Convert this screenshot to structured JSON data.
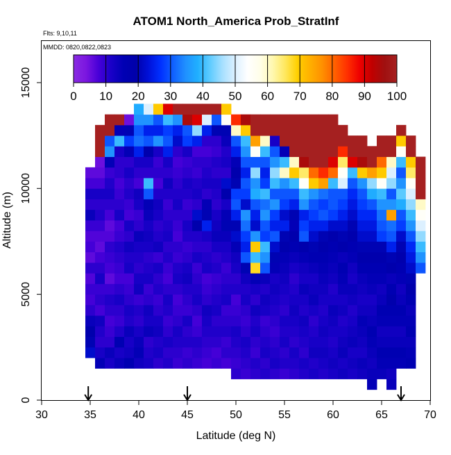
{
  "chart_data": {
    "type": "heatmap",
    "title": "ATOM1 North_America Prob_StratInf",
    "annotations": {
      "flights": "Flts: 9,10,11",
      "dates": "MMDD: 0820,0822,0823"
    },
    "xlabel": "Latitude (deg N)",
    "ylabel": "Altitude (m)",
    "xlim": [
      30,
      70
    ],
    "ylim": [
      0,
      17000
    ],
    "x_ticks": [
      30,
      35,
      40,
      45,
      50,
      55,
      60,
      65,
      70
    ],
    "y_ticks": [
      0,
      5000,
      10000,
      15000
    ],
    "colorbar": {
      "range": [
        0,
        100
      ],
      "ticks": [
        0,
        10,
        20,
        30,
        40,
        50,
        60,
        70,
        80,
        90,
        100
      ],
      "colors": [
        "#8a2be2",
        "#7b16e0",
        "#4800d8",
        "#1a00c8",
        "#0000b4",
        "#0000aa",
        "#0010d8",
        "#0030ff",
        "#1060ff",
        "#2090ff",
        "#20b0ff",
        "#60ccff",
        "#a8e0ff",
        "#dcf0ff",
        "#ffffff",
        "#fffee8",
        "#fff8b0",
        "#ffe860",
        "#ffd000",
        "#ffb000",
        "#ff9000",
        "#ff6000",
        "#ff3000",
        "#ee0000",
        "#c00000",
        "#a01010",
        "#a52020"
      ]
    },
    "flight_markers_lat": [
      34.8,
      45,
      67
    ],
    "cell_size": {
      "lat": 1.0,
      "alt": 500
    },
    "columns": [
      {
        "lat": 35,
        "bottom": 2000,
        "values": [
          22,
          20,
          18,
          14,
          10,
          8,
          9,
          7,
          10,
          6,
          8,
          7,
          9,
          14,
          10,
          12,
          8,
          6
        ]
      },
      {
        "lat": 36,
        "bottom": 1500,
        "values": [
          15,
          12,
          10,
          11,
          13,
          8,
          10,
          9,
          12,
          10,
          8,
          6,
          7,
          9,
          11,
          10,
          12,
          8,
          6,
          5,
          100,
          100,
          100
        ]
      },
      {
        "lat": 37,
        "bottom": 1500,
        "values": [
          12,
          14,
          10,
          9,
          8,
          10,
          11,
          9,
          6,
          8,
          9,
          10,
          7,
          6,
          8,
          10,
          12,
          11,
          9,
          15,
          35,
          30,
          100,
          100
        ]
      },
      {
        "lat": 38,
        "bottom": 1500,
        "values": [
          14,
          12,
          16,
          11,
          9,
          10,
          12,
          10,
          8,
          9,
          10,
          11,
          9,
          8,
          12,
          10,
          9,
          8,
          10,
          10,
          12,
          40,
          15,
          100
        ]
      },
      {
        "lat": 39,
        "bottom": 1500,
        "values": [
          16,
          13,
          12,
          14,
          11,
          12,
          10,
          9,
          8,
          12,
          11,
          13,
          10,
          12,
          8,
          9,
          11,
          10,
          12,
          10,
          15,
          28,
          20,
          5
        ]
      },
      {
        "lat": 40,
        "bottom": 1500,
        "values": [
          13,
          15,
          14,
          12,
          10,
          11,
          9,
          13,
          12,
          10,
          11,
          12,
          14,
          10,
          9,
          12,
          13,
          8,
          10,
          12,
          25,
          32,
          30,
          35,
          38
        ]
      },
      {
        "lat": 41,
        "bottom": 1500,
        "values": [
          12,
          11,
          10,
          14,
          12,
          13,
          10,
          9,
          12,
          11,
          10,
          12,
          13,
          12,
          14,
          15,
          30,
          40,
          10,
          12,
          18,
          30,
          25,
          35,
          50
        ]
      },
      {
        "lat": 42,
        "bottom": 1500,
        "values": [
          10,
          12,
          11,
          13,
          12,
          10,
          9,
          11,
          10,
          12,
          9,
          13,
          11,
          10,
          12,
          13,
          11,
          8,
          10,
          9,
          12,
          35,
          25,
          30,
          70
        ]
      },
      {
        "lat": 43,
        "bottom": 1500,
        "values": [
          11,
          10,
          12,
          10,
          9,
          11,
          12,
          10,
          8,
          9,
          11,
          10,
          12,
          11,
          10,
          9,
          11,
          13,
          10,
          12,
          25,
          30,
          28,
          40,
          90
        ]
      },
      {
        "lat": 44,
        "bottom": 1500,
        "values": [
          9,
          10,
          11,
          12,
          10,
          9,
          8,
          10,
          12,
          11,
          9,
          10,
          8,
          9,
          10,
          12,
          11,
          10,
          9,
          8,
          10,
          22,
          25,
          35,
          100
        ]
      },
      {
        "lat": 45,
        "bottom": 1500,
        "values": [
          10,
          9,
          11,
          10,
          12,
          9,
          10,
          11,
          13,
          12,
          10,
          9,
          11,
          12,
          10,
          9,
          11,
          12,
          10,
          9,
          12,
          28,
          30,
          95,
          100
        ]
      },
      {
        "lat": 46,
        "bottom": 1500,
        "values": [
          9,
          10,
          11,
          9,
          8,
          10,
          12,
          11,
          10,
          9,
          12,
          10,
          11,
          18,
          22,
          10,
          12,
          11,
          9,
          10,
          8,
          25,
          45,
          90,
          100
        ]
      },
      {
        "lat": 47,
        "bottom": 1500,
        "values": [
          8,
          9,
          10,
          11,
          12,
          13,
          10,
          9,
          8,
          12,
          11,
          10,
          12,
          25,
          20,
          15,
          10,
          12,
          11,
          10,
          8,
          10,
          25,
          50,
          100
        ]
      },
      {
        "lat": 48,
        "bottom": 1500,
        "values": [
          9,
          8,
          10,
          11,
          10,
          12,
          11,
          10,
          9,
          11,
          10,
          12,
          14,
          13,
          12,
          10,
          11,
          12,
          10,
          11,
          9,
          10,
          20,
          30,
          100
        ]
      },
      {
        "lat": 49,
        "bottom": 1500,
        "values": [
          8,
          10,
          9,
          11,
          10,
          9,
          12,
          11,
          10,
          9,
          11,
          12,
          14,
          20,
          15,
          12,
          18,
          22,
          10,
          12,
          11,
          14,
          20,
          55,
          70
        ]
      },
      {
        "lat": 50,
        "bottom": 1000,
        "values": [
          10,
          9,
          10,
          11,
          12,
          10,
          9,
          8,
          11,
          10,
          12,
          13,
          15,
          22,
          20,
          25,
          30,
          28,
          20,
          18,
          15,
          25,
          30,
          60,
          85
        ]
      },
      {
        "lat": 51,
        "bottom": 1000,
        "values": [
          9,
          10,
          11,
          12,
          10,
          9,
          10,
          12,
          11,
          13,
          20,
          30,
          25,
          28,
          32,
          35,
          22,
          28,
          30,
          25,
          30,
          35,
          40,
          70,
          95
        ]
      },
      {
        "lat": 52,
        "bottom": 1000,
        "values": [
          10,
          11,
          9,
          10,
          12,
          11,
          13,
          10,
          12,
          15,
          68,
          40,
          70,
          35,
          22,
          25,
          30,
          38,
          35,
          45,
          30,
          55,
          75,
          100,
          100
        ]
      },
      {
        "lat": 53,
        "bottom": 1000,
        "values": [
          11,
          10,
          12,
          11,
          10,
          9,
          12,
          13,
          11,
          14,
          30,
          35,
          40,
          28,
          30,
          35,
          32,
          40,
          28,
          25,
          30,
          40,
          60,
          100,
          100
        ]
      },
      {
        "lat": 54,
        "bottom": 1000,
        "values": [
          10,
          12,
          11,
          10,
          9,
          10,
          11,
          12,
          13,
          12,
          15,
          20,
          22,
          30,
          25,
          28,
          35,
          30,
          40,
          45,
          35,
          30,
          12,
          100,
          100
        ]
      },
      {
        "lat": 55,
        "bottom": 1000,
        "values": [
          9,
          11,
          10,
          12,
          11,
          12,
          10,
          11,
          12,
          13,
          14,
          15,
          18,
          20,
          25,
          22,
          28,
          30,
          35,
          60,
          40,
          15,
          100,
          100,
          100
        ]
      },
      {
        "lat": 56,
        "bottom": 1000,
        "values": [
          10,
          11,
          12,
          10,
          11,
          12,
          13,
          12,
          11,
          10,
          12,
          14,
          16,
          18,
          15,
          20,
          25,
          30,
          40,
          70,
          60,
          100,
          100,
          100,
          100
        ]
      },
      {
        "lat": 57,
        "bottom": 1000,
        "values": [
          11,
          12,
          10,
          11,
          12,
          13,
          11,
          12,
          14,
          12,
          13,
          15,
          18,
          30,
          28,
          25,
          35,
          40,
          55,
          65,
          95,
          100,
          100,
          100,
          100
        ]
      },
      {
        "lat": 58,
        "bottom": 1000,
        "values": [
          12,
          11,
          13,
          12,
          11,
          10,
          12,
          14,
          13,
          12,
          14,
          16,
          20,
          22,
          25,
          28,
          30,
          35,
          70,
          80,
          100,
          100,
          100,
          100,
          100
        ]
      },
      {
        "lat": 59,
        "bottom": 1000,
        "values": [
          11,
          12,
          13,
          12,
          13,
          12,
          11,
          12,
          13,
          14,
          15,
          16,
          18,
          20,
          25,
          30,
          28,
          32,
          75,
          85,
          100,
          100,
          100,
          100,
          100
        ]
      },
      {
        "lat": 60,
        "bottom": 1000,
        "values": [
          12,
          13,
          12,
          11,
          12,
          13,
          14,
          12,
          11,
          13,
          14,
          15,
          16,
          18,
          22,
          28,
          30,
          30,
          40,
          80,
          90,
          100,
          100,
          100,
          100
        ]
      },
      {
        "lat": 61,
        "bottom": 1000,
        "values": [
          13,
          12,
          14,
          13,
          12,
          11,
          13,
          12,
          14,
          15,
          16,
          14,
          18,
          20,
          22,
          25,
          28,
          30,
          50,
          55,
          65,
          85,
          100,
          100
        ]
      },
      {
        "lat": 62,
        "bottom": 1000,
        "values": [
          12,
          13,
          12,
          14,
          13,
          12,
          11,
          13,
          14,
          12,
          13,
          15,
          16,
          18,
          20,
          22,
          24,
          26,
          30,
          40,
          90,
          100,
          100
        ]
      },
      {
        "lat": 63,
        "bottom": 1000,
        "values": [
          13,
          14,
          12,
          13,
          14,
          15,
          13,
          12,
          13,
          14,
          16,
          18,
          20,
          22,
          24,
          26,
          28,
          30,
          35,
          70,
          95,
          100,
          100
        ]
      },
      {
        "lat": 64,
        "bottom": 500,
        "values": [
          15,
          14,
          13,
          14,
          15,
          16,
          14,
          13,
          12,
          14,
          15,
          16,
          18,
          20,
          22,
          24,
          26,
          30,
          38,
          45,
          75,
          100,
          100
        ]
      },
      {
        "lat": 65,
        "bottom": 1000,
        "values": [
          14,
          15,
          16,
          14,
          13,
          15,
          16,
          14,
          13,
          15,
          16,
          18,
          20,
          28,
          30,
          32,
          35,
          40,
          55,
          70,
          80,
          100,
          100
        ]
      },
      {
        "lat": 66,
        "bottom": 500,
        "values": [
          14,
          13,
          15,
          16,
          14,
          13,
          15,
          16,
          18,
          16,
          14,
          18,
          20,
          25,
          30,
          32,
          75,
          35,
          30,
          45,
          50,
          60,
          100,
          100
        ]
      },
      {
        "lat": 67,
        "bottom": 1500,
        "values": [
          15,
          16,
          14,
          13,
          15,
          16,
          14,
          13,
          15,
          16,
          18,
          20,
          22,
          28,
          30,
          38,
          42,
          35,
          30,
          40,
          55,
          70,
          100
        ]
      },
      {
        "lat": 68,
        "bottom": 1500,
        "values": [
          16,
          15,
          14,
          16,
          15,
          14,
          16,
          18,
          20,
          22,
          24,
          26,
          30,
          35,
          40,
          45,
          50,
          55,
          65,
          70,
          100,
          100
        ]
      },
      {
        "lat": 69,
        "bottom": 6000,
        "values": [
          30,
          35,
          40,
          45,
          50,
          55,
          60,
          100,
          100,
          100,
          100
        ]
      }
    ]
  }
}
